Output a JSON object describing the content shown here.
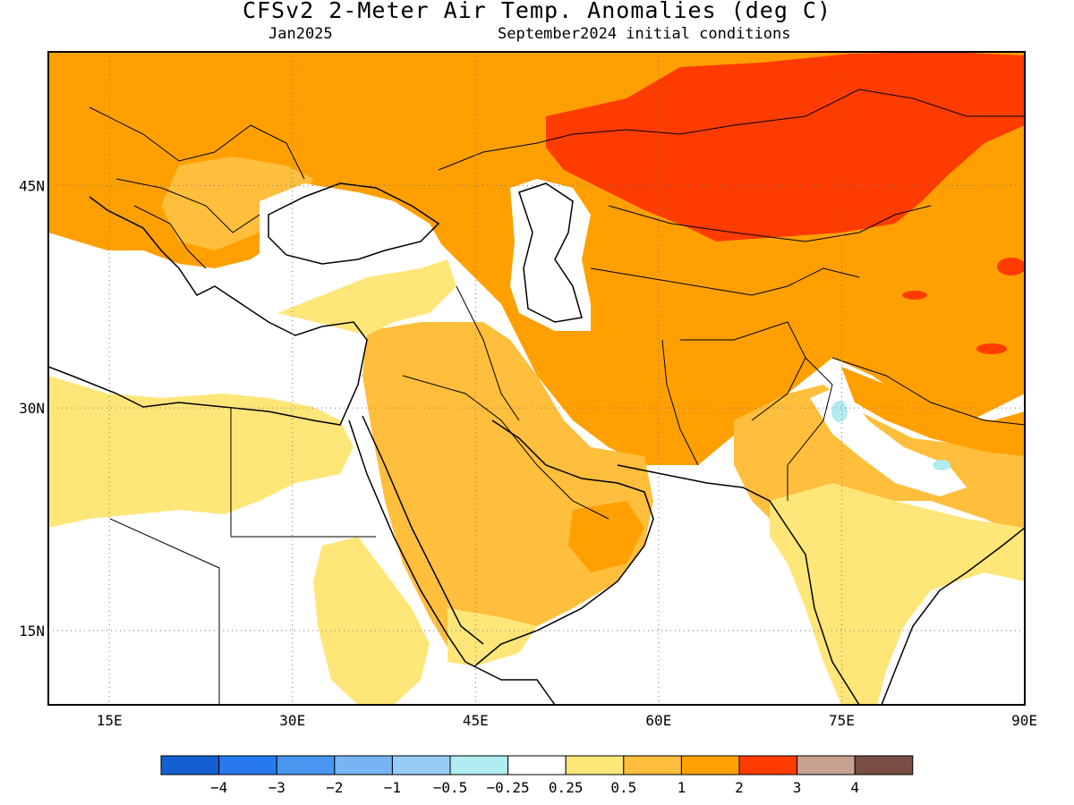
{
  "title": "CFSv2 2-Meter Air Temp. Anomalies (deg C)",
  "valid_month": "Jan2025",
  "init_conditions": "September2024 initial conditions",
  "map": {
    "lon_range": [
      10,
      90
    ],
    "lat_range": [
      10,
      54
    ],
    "lon_ticks": [
      {
        "value": 15,
        "label": "15E"
      },
      {
        "value": 30,
        "label": "30E"
      },
      {
        "value": 45,
        "label": "45E"
      },
      {
        "value": 60,
        "label": "60E"
      },
      {
        "value": 75,
        "label": "75E"
      },
      {
        "value": 90,
        "label": "90E"
      }
    ],
    "lat_ticks": [
      {
        "value": 45,
        "label": "45N"
      },
      {
        "value": 30,
        "label": "30N"
      },
      {
        "value": 15,
        "label": "15N"
      }
    ],
    "gridlines": "dotted"
  },
  "legend": {
    "placement": "bottom",
    "colors": [
      "#1560d0",
      "#2878f0",
      "#4896f0",
      "#78b4f4",
      "#98ccf8",
      "#b0ecf0",
      "#ffffff",
      "#ffe678",
      "#ffbe3c",
      "#ffa000",
      "#ff3c00",
      "#c8a090",
      "#784e42"
    ],
    "labels": [
      "−4",
      "−3",
      "−2",
      "−1",
      "−0.5",
      "−0.25",
      "0.25",
      "0.5",
      "1",
      "2",
      "3",
      "4"
    ]
  },
  "anomaly_colors": {
    "very_high": "#ff3c00",
    "high": "#ffa000",
    "moderate": "#ffbe3c",
    "slight": "#ffe678",
    "near_normal": "#ffffff",
    "slight_cold": "#b0ecf0"
  }
}
